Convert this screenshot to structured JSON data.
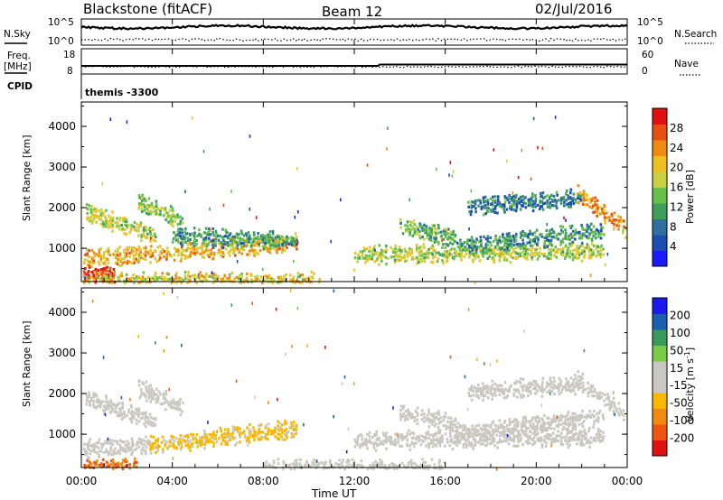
{
  "header": {
    "radar_title": "Blackstone (fitACF)",
    "beam_title": "Beam 12",
    "date": "02/Jul/2016"
  },
  "top_panels": {
    "nsky_label": "N.Sky",
    "nsearch_label": "N.Search",
    "freq_label_line1": "Freq.",
    "freq_label_line2": "[MHz]",
    "nave_label": "Nave",
    "cpid_label": "CPID",
    "cpid_text": "themis -3300",
    "noise_ticks_left": [
      "10^5",
      "10^0"
    ],
    "noise_ticks_right": [
      "10^5",
      "10^0"
    ],
    "freq_ticks": [
      "18",
      "8"
    ],
    "nave_ticks": [
      "60",
      "0"
    ]
  },
  "colors": {
    "power": [
      "#1a1aff",
      "#1a4fb0",
      "#2f6f9f",
      "#3e9e5a",
      "#66c04a",
      "#c8d040",
      "#f0c020",
      "#f08a10",
      "#e85010",
      "#e01010"
    ],
    "velocity": [
      "#e01010",
      "#f05510",
      "#f08a10",
      "#f8b800",
      "#c8c8c0",
      "#c8c8c0",
      "#77cc44",
      "#3a9a5a",
      "#1a5fb0",
      "#1a1aee"
    ]
  },
  "chart_data": [
    {
      "type": "heatmap",
      "name_panel": "power",
      "ylabel": "Slant Range [km]",
      "yticks": [
        "4000",
        "3000",
        "2000",
        "1000"
      ],
      "ylim": [
        180,
        4600
      ],
      "xlim": [
        0,
        24
      ],
      "colorbar_label": "Power [dB]",
      "colorbar_ticks": [
        "28",
        "24",
        "20",
        "16",
        "12",
        "8",
        "4"
      ],
      "colorbar_range": [
        0,
        30
      ],
      "echo_bands": [
        {
          "t_start": 0.2,
          "t_end": 3.3,
          "r_start": 1950,
          "r_end": 1350,
          "level": 16
        },
        {
          "t_start": 0.0,
          "t_end": 9.5,
          "r_start": 800,
          "r_end": 1200,
          "level": 20
        },
        {
          "t_start": 0.0,
          "t_end": 1.5,
          "r_start": 500,
          "r_end": 350,
          "level": 28
        },
        {
          "t_start": 2.5,
          "t_end": 4.5,
          "r_start": 2200,
          "r_end": 1700,
          "level": 14
        },
        {
          "t_start": 4.0,
          "t_end": 9.5,
          "r_start": 1350,
          "r_end": 1250,
          "level": 10
        },
        {
          "t_start": 0.0,
          "t_end": 10.5,
          "r_start": 250,
          "r_end": 250,
          "level": 18
        },
        {
          "t_start": 12.0,
          "t_end": 23.0,
          "r_start": 900,
          "r_end": 1000,
          "level": 16
        },
        {
          "t_start": 14.0,
          "t_end": 16.5,
          "r_start": 1600,
          "r_end": 1300,
          "level": 12
        },
        {
          "t_start": 16.5,
          "t_end": 23.0,
          "r_start": 1100,
          "r_end": 1500,
          "level": 10
        },
        {
          "t_start": 21.8,
          "t_end": 24.0,
          "r_start": 2400,
          "r_end": 1500,
          "level": 22
        },
        {
          "t_start": 17.0,
          "t_end": 22.0,
          "r_start": 2100,
          "r_end": 2300,
          "level": 8
        }
      ]
    },
    {
      "type": "heatmap",
      "name_panel": "velocity",
      "ylabel": "Slant Range [km]",
      "yticks": [
        "4000",
        "3000",
        "2000",
        "1000"
      ],
      "ylim": [
        180,
        4600
      ],
      "xlim": [
        0,
        24
      ],
      "colorbar_label": "Velocity [m s^-1]",
      "colorbar_ticks": [
        "200",
        "100",
        "50",
        "15",
        "-15",
        "-50",
        "-100",
        "-200"
      ],
      "colorbar_range": [
        -250,
        250
      ],
      "echo_bands": [
        {
          "t_start": 0.2,
          "t_end": 3.3,
          "r_start": 1950,
          "r_end": 1350,
          "level": 0
        },
        {
          "t_start": 0.0,
          "t_end": 3.0,
          "r_start": 700,
          "r_end": 800,
          "level": 0
        },
        {
          "t_start": 3.0,
          "t_end": 9.5,
          "r_start": 800,
          "r_end": 1200,
          "level": -60
        },
        {
          "t_start": 0.0,
          "t_end": 2.5,
          "r_start": 250,
          "r_end": 250,
          "level": -150
        },
        {
          "t_start": 2.5,
          "t_end": 4.5,
          "r_start": 2200,
          "r_end": 1700,
          "level": 0
        },
        {
          "t_start": 8.0,
          "t_end": 16.0,
          "r_start": 230,
          "r_end": 230,
          "level": 30
        },
        {
          "t_start": 12.0,
          "t_end": 23.0,
          "r_start": 900,
          "r_end": 1000,
          "level": 0
        },
        {
          "t_start": 14.0,
          "t_end": 16.5,
          "r_start": 1600,
          "r_end": 1300,
          "level": 0
        },
        {
          "t_start": 16.5,
          "t_end": 23.0,
          "r_start": 1100,
          "r_end": 1500,
          "level": 0
        },
        {
          "t_start": 21.8,
          "t_end": 24.0,
          "r_start": 2400,
          "r_end": 1500,
          "level": 0
        },
        {
          "t_start": 17.0,
          "t_end": 22.0,
          "r_start": 2100,
          "r_end": 2300,
          "level": 0
        }
      ]
    }
  ],
  "xaxis": {
    "label": "Time UT",
    "ticks": [
      "00:00",
      "04:00",
      "08:00",
      "12:00",
      "16:00",
      "20:00",
      "00:00"
    ],
    "range_hours": [
      0,
      24
    ]
  }
}
